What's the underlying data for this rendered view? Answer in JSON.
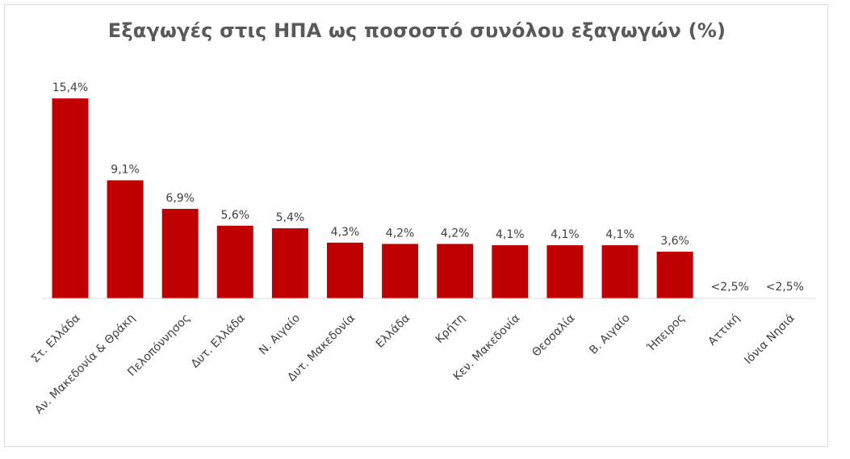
{
  "chart_data": {
    "type": "bar",
    "title": "Εξαγωγές στις ΗΠΑ ως ποσοστό συνόλου εξαγωγών (%)",
    "xlabel": "",
    "ylabel": "",
    "grid": false,
    "legend": "none",
    "bar_color": "#c00000",
    "categories": [
      "Στ. Ελλάδα",
      "Αν. Μακεδονία & Θράκη",
      "Πελοπόννησος",
      "Δυτ. Ελλάδα",
      "Ν. Αιγαίο",
      "Δυτ. Μακεδονία",
      "Ελλάδα",
      "Κρήτη",
      "Κεν. Μακεδονία",
      "Θεσσαλία",
      "Β. Αιγαίο",
      "Ήπειρος",
      "Αττική",
      "Ιόνια Νησιά"
    ],
    "values": [
      15.4,
      9.1,
      6.9,
      5.6,
      5.4,
      4.3,
      4.2,
      4.2,
      4.1,
      4.1,
      4.1,
      3.6,
      null,
      null
    ],
    "data_labels": [
      "15,4%",
      "9,1%",
      "6,9%",
      "5,6%",
      "5,4%",
      "4,3%",
      "4,2%",
      "4,2%",
      "4,1%",
      "4,1%",
      "4,1%",
      "3,6%",
      "<2,5%",
      "<2,5%"
    ]
  }
}
